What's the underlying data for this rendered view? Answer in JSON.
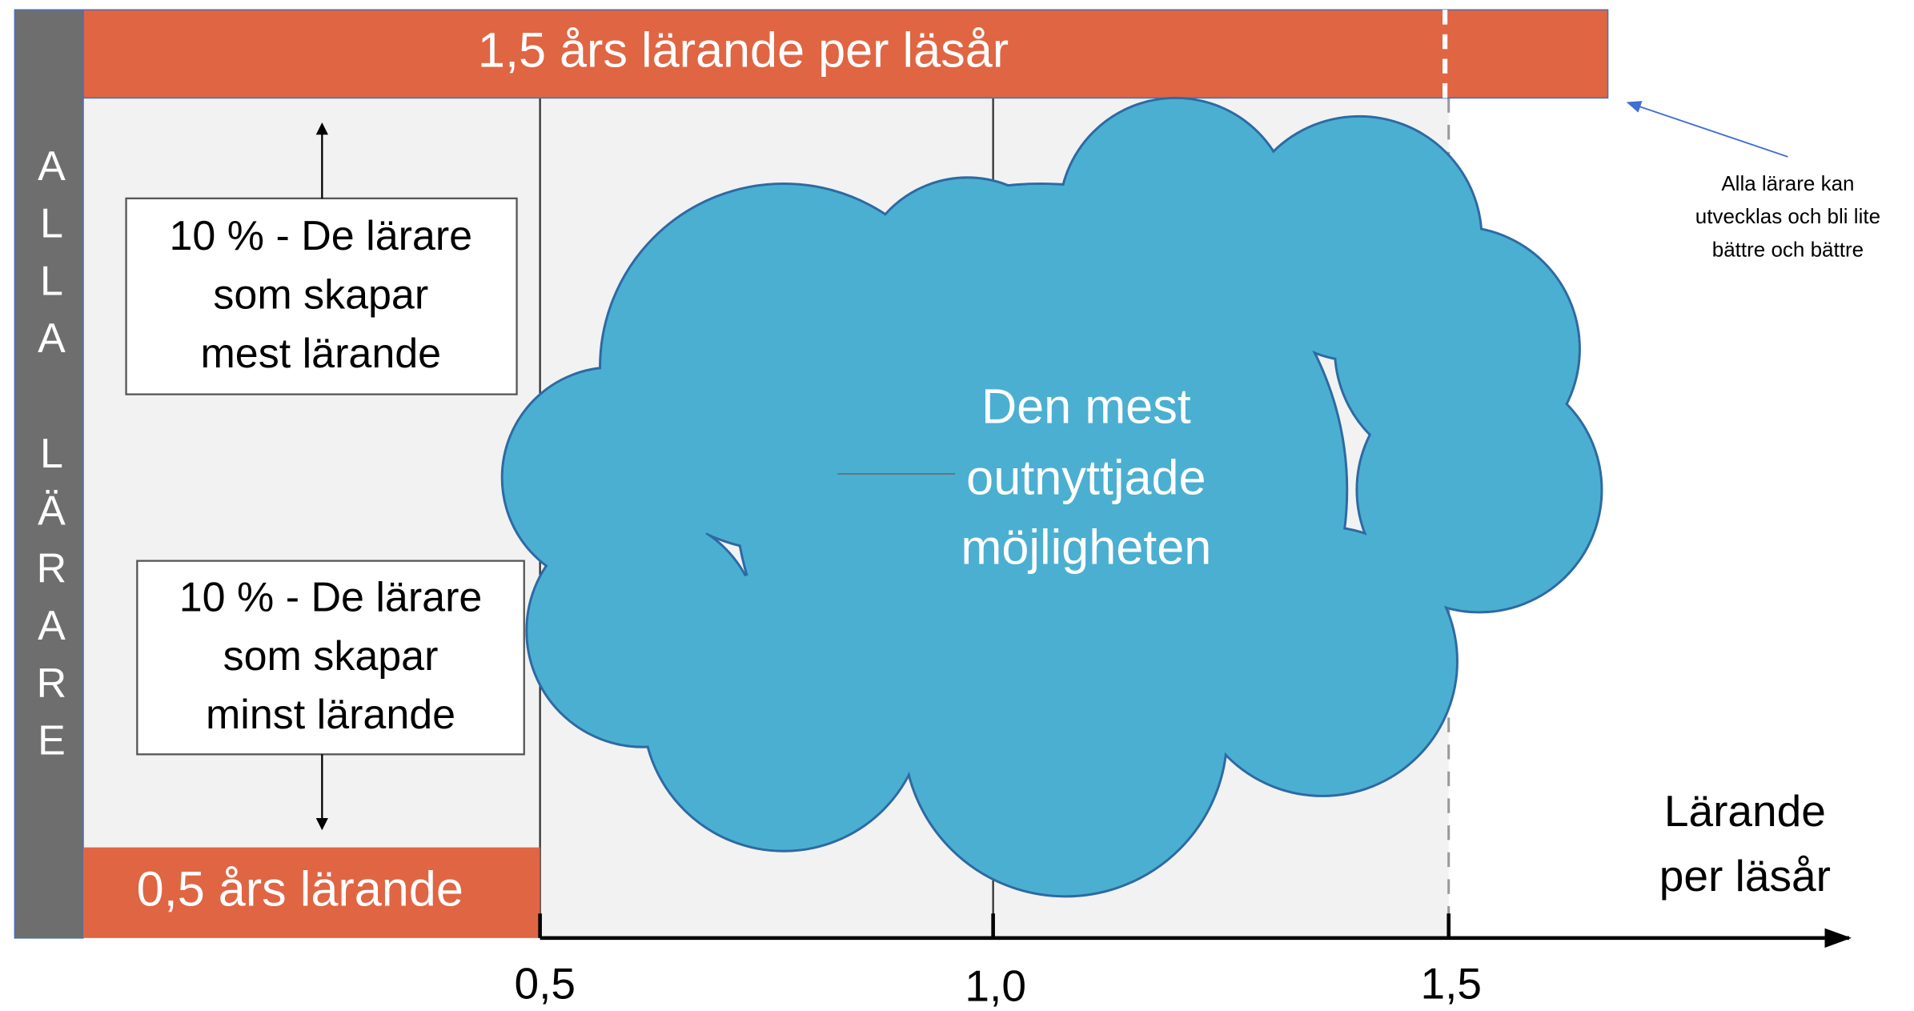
{
  "side_label": "ALLA LÄRARE",
  "top_bar": "1,5 års lärande per läsår",
  "bottom_bar": "0,5 års lärande",
  "top_box": [
    "10 % - De lärare",
    "som skapar",
    "mest lärande"
  ],
  "bottom_box": [
    "10 % - De lärare",
    "som skapar",
    "minst lärande"
  ],
  "cloud": [
    "Den mest",
    "outnyttjade",
    "möjligheten"
  ],
  "axis": {
    "ticks": [
      "0,5",
      "1,0",
      "1,5"
    ],
    "title": [
      "Lärande",
      "per läsår"
    ]
  },
  "note": [
    "Alla lärare kan",
    "utvecklas och bli lite",
    "bättre och bättre"
  ]
}
